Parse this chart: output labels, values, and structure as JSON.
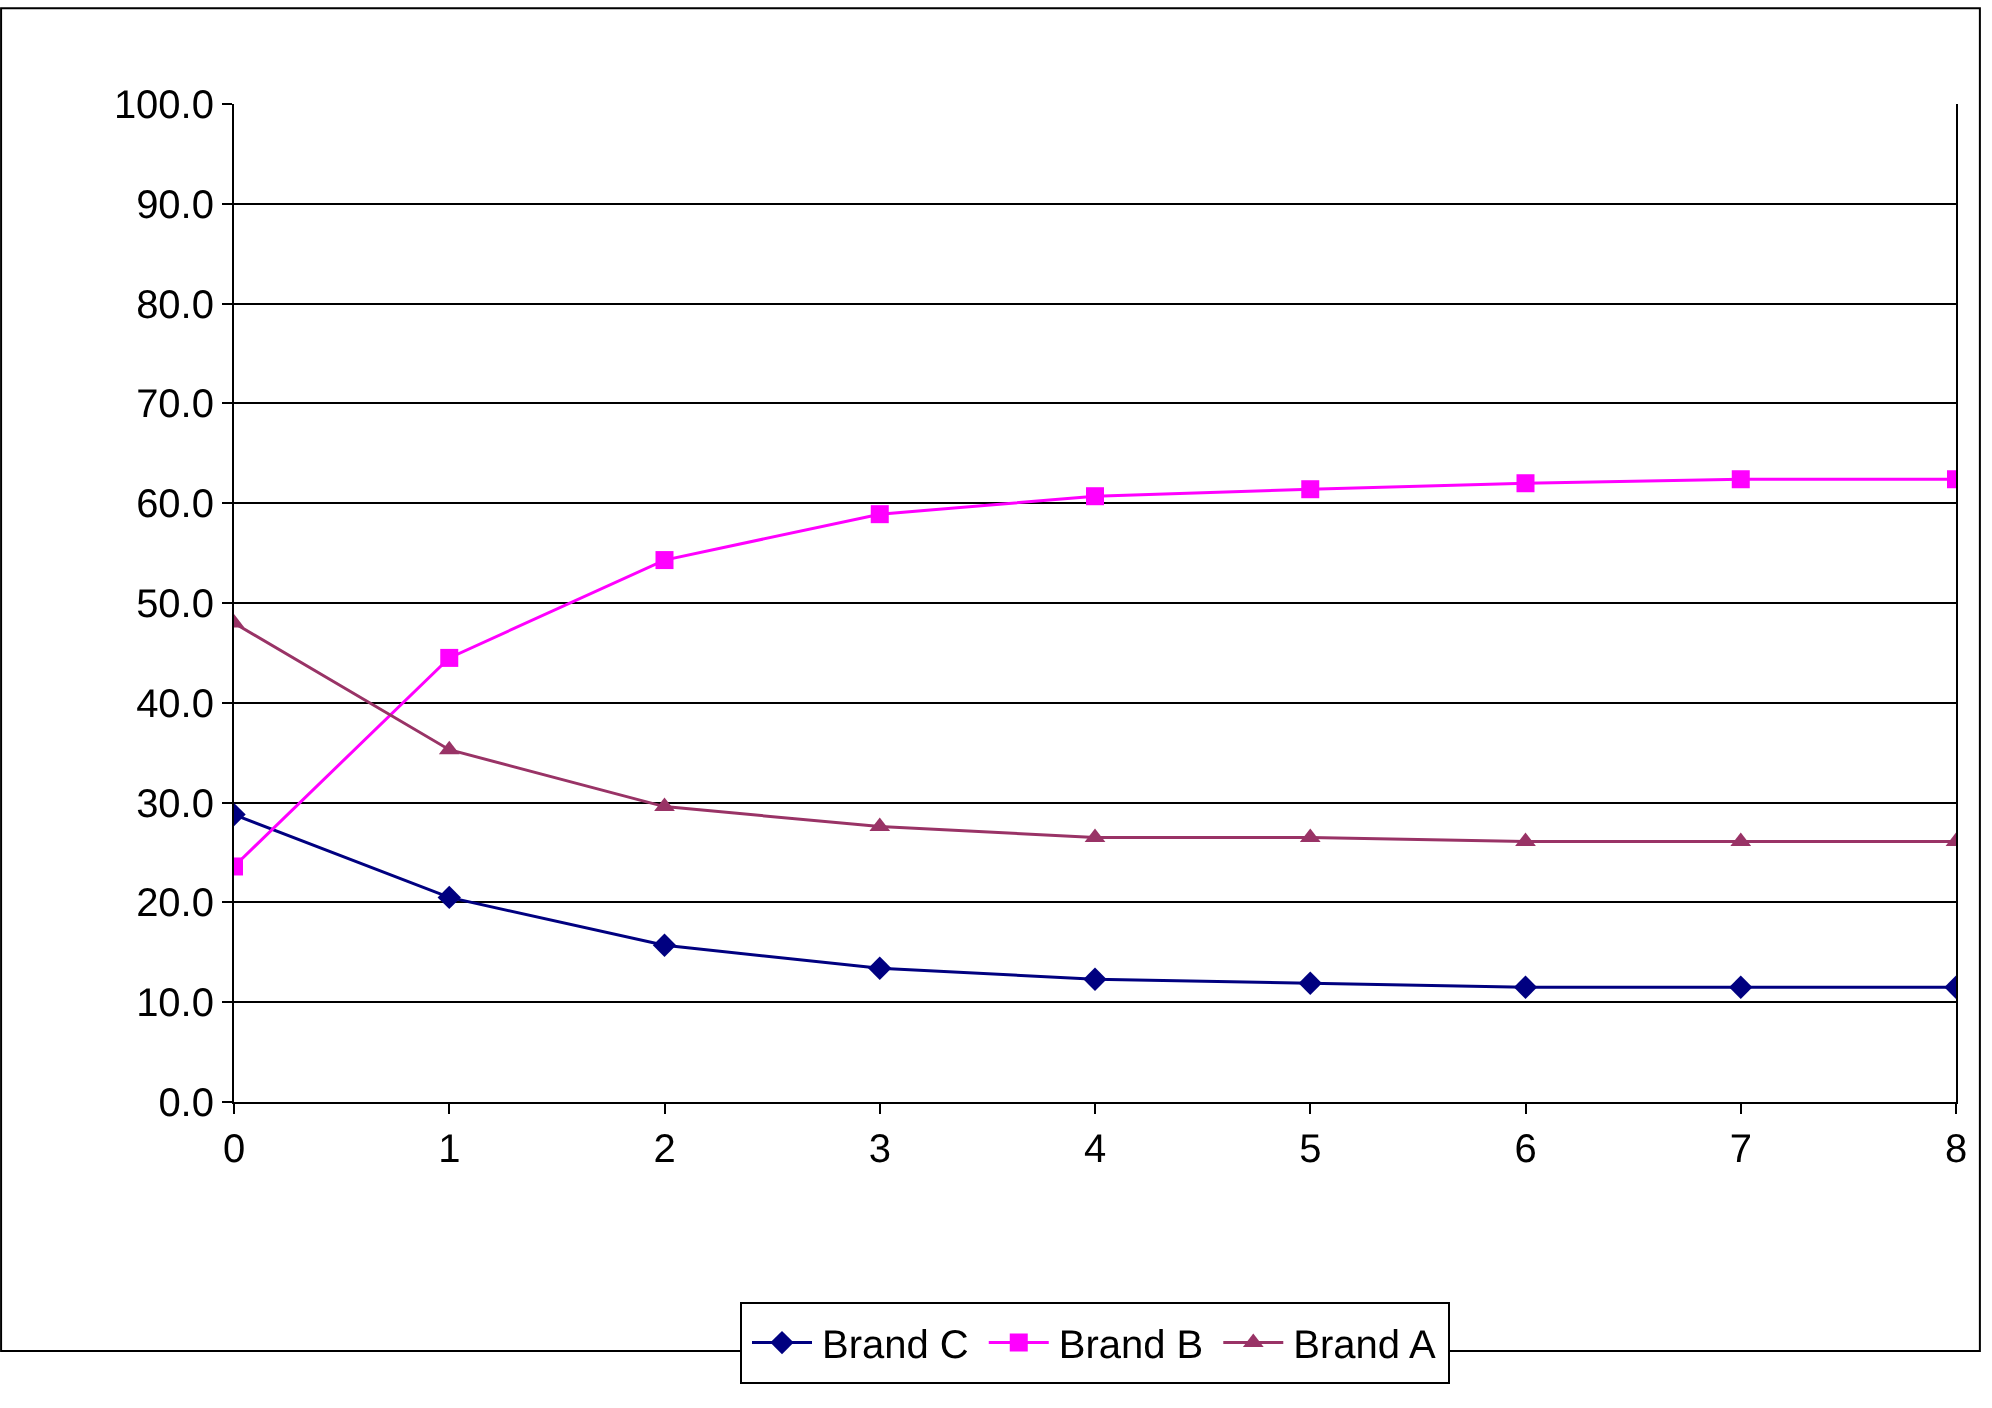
{
  "chart_data": {
    "type": "line",
    "x": [
      0,
      1,
      2,
      3,
      4,
      5,
      6,
      7,
      8
    ],
    "xlim": [
      0,
      8
    ],
    "xticks": [
      0,
      1,
      2,
      3,
      4,
      5,
      6,
      7,
      8
    ],
    "ylim": [
      0,
      100
    ],
    "yticks": [
      {
        "value": 0,
        "label": "0.0"
      },
      {
        "value": 10,
        "label": "10.0"
      },
      {
        "value": 20,
        "label": "20.0"
      },
      {
        "value": 30,
        "label": "30.0"
      },
      {
        "value": 40,
        "label": "40.0"
      },
      {
        "value": 50,
        "label": "50.0"
      },
      {
        "value": 60,
        "label": "60.0"
      },
      {
        "value": 70,
        "label": "70.0"
      },
      {
        "value": 80,
        "label": "80.0"
      },
      {
        "value": 90,
        "label": "90.0"
      },
      {
        "value": 100,
        "label": "100.0"
      }
    ],
    "grid": "y",
    "legend": "bottom",
    "line_style": "solid",
    "series": [
      {
        "name": "Brand C",
        "color": "#000080",
        "marker": "diamond",
        "values": [
          28.8,
          20.5,
          15.7,
          13.4,
          12.3,
          11.9,
          11.5,
          11.5,
          11.5
        ]
      },
      {
        "name": "Brand B",
        "color": "#ff00ff",
        "marker": "square",
        "values": [
          23.6,
          44.5,
          54.3,
          58.9,
          60.7,
          61.4,
          62.0,
          62.4,
          62.4
        ]
      },
      {
        "name": "Brand A",
        "color": "#993366",
        "marker": "triangle",
        "values": [
          48.0,
          35.3,
          29.6,
          27.6,
          26.5,
          26.5,
          26.1,
          26.1,
          26.1
        ]
      }
    ]
  }
}
